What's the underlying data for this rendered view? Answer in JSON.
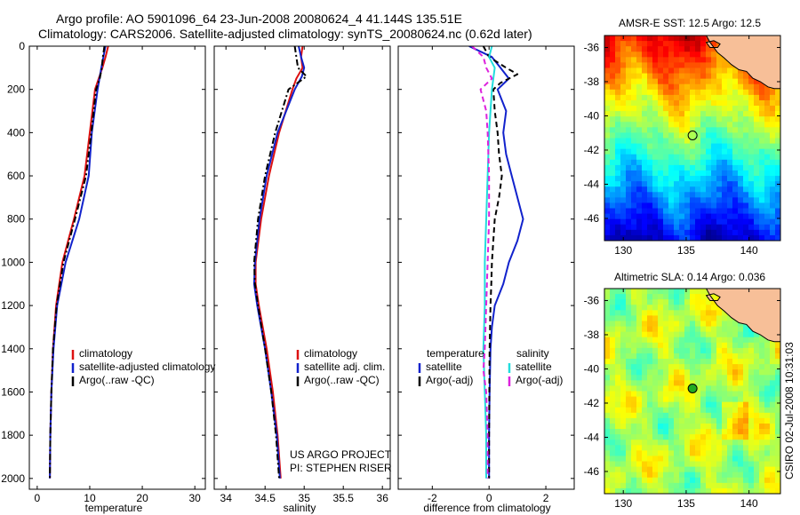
{
  "header": {
    "line1": "Argo profile: AO 5901096_64 23-Jun-2008 20080624_4 41.144S 135.51E",
    "line2": "Climatology: CARS2006. Satellite-adjusted climatology: synTS_20080624.nc (0.62d later)"
  },
  "side_label": "CSIRO 02-Jul-2008 10:31:03",
  "colors": {
    "climatology": "#dd1111",
    "satellite": "#1122cc",
    "argo": "#000000",
    "salinity_satellite": "#22dddd",
    "salinity_argo": "#dd22dd",
    "land": "#f7bf98"
  },
  "chart_data": [
    {
      "type": "line",
      "xlabel": "temperature",
      "ylim": [
        0,
        2050
      ],
      "y_reversed": true,
      "xlim": [
        -1.5,
        32
      ],
      "xticks": [
        0,
        10,
        20,
        30
      ],
      "yticks": [
        0,
        200,
        400,
        600,
        800,
        1000,
        1200,
        1400,
        1600,
        1800,
        2000
      ],
      "legend": [
        "climatology",
        "satellite-adjusted climatology",
        "Argo(..raw -QC)"
      ],
      "series": [
        {
          "name": "climatology",
          "style": "solid",
          "color": "#dd1111",
          "y": [
            0,
            50,
            100,
            200,
            400,
            600,
            800,
            1000,
            1200,
            1400,
            1600,
            1800,
            2000
          ],
          "x": [
            13.5,
            13.0,
            12.4,
            11.0,
            10.0,
            9.0,
            7.0,
            4.8,
            3.6,
            3.0,
            2.7,
            2.5,
            2.4
          ]
        },
        {
          "name": "satellite-adjusted climatology",
          "style": "solid",
          "color": "#1122cc",
          "y": [
            0,
            50,
            100,
            200,
            400,
            600,
            800,
            1000,
            1200,
            1400,
            1600,
            1800,
            2000
          ],
          "x": [
            13.0,
            12.6,
            12.2,
            11.5,
            10.4,
            9.8,
            8.0,
            5.4,
            3.8,
            3.1,
            2.7,
            2.5,
            2.4
          ]
        },
        {
          "name": "Argo(..raw -QC)",
          "style": "dashdot",
          "color": "#000000",
          "y": [
            0,
            50,
            100,
            150,
            200,
            400,
            600,
            800,
            1000,
            1200,
            1400,
            1600,
            1800,
            2000
          ],
          "x": [
            12.8,
            12.5,
            12.3,
            11.9,
            11.2,
            10.3,
            9.3,
            7.2,
            5.0,
            3.7,
            3.0,
            2.7,
            2.5,
            2.4
          ]
        }
      ]
    },
    {
      "type": "line",
      "xlabel": "salinity",
      "ylim": [
        0,
        2050
      ],
      "y_reversed": true,
      "xlim": [
        33.85,
        36.1
      ],
      "xticks": [
        34,
        34.5,
        35,
        35.5,
        36
      ],
      "legend": [
        "climatology",
        "satellite adj. clim.",
        "Argo(..raw -QC)"
      ],
      "annotation": [
        "US ARGO PROJECT",
        "PI: STEPHEN RISER"
      ],
      "series": [
        {
          "name": "climatology",
          "style": "solid",
          "color": "#dd1111",
          "y": [
            0,
            50,
            100,
            150,
            200,
            400,
            600,
            800,
            1000,
            1100,
            1200,
            1400,
            1600,
            1800,
            2000
          ],
          "x": [
            34.98,
            34.96,
            34.98,
            34.9,
            34.85,
            34.68,
            34.55,
            34.45,
            34.38,
            34.38,
            34.42,
            34.52,
            34.6,
            34.66,
            34.7
          ]
        },
        {
          "name": "satellite adj. clim.",
          "style": "solid",
          "color": "#1122cc",
          "y": [
            0,
            50,
            100,
            140,
            200,
            400,
            600,
            800,
            1000,
            1100,
            1200,
            1400,
            1600,
            1800,
            2000
          ],
          "x": [
            34.93,
            34.96,
            35.0,
            34.97,
            34.88,
            34.66,
            34.52,
            34.43,
            34.37,
            34.36,
            34.4,
            34.5,
            34.58,
            34.65,
            34.69
          ]
        },
        {
          "name": "Argo(..raw -QC)",
          "style": "dashdot",
          "color": "#000000",
          "y": [
            0,
            50,
            100,
            140,
            200,
            400,
            600,
            800,
            1000,
            1100,
            1200,
            1400,
            1600,
            1800,
            2000
          ],
          "x": [
            34.88,
            34.9,
            34.92,
            35.03,
            34.8,
            34.63,
            34.5,
            34.41,
            34.36,
            34.37,
            34.41,
            34.5,
            34.58,
            34.64,
            34.68
          ]
        }
      ]
    },
    {
      "type": "line",
      "xlabel": "difference from climatology",
      "ylim": [
        0,
        2050
      ],
      "y_reversed": true,
      "xlim": [
        -3.2,
        3.0
      ],
      "xticks": [
        -2,
        0,
        2
      ],
      "legend_groups": [
        {
          "heading": "temperature",
          "entries": [
            "satellite",
            "Argo(-adj)"
          ]
        },
        {
          "heading": "salinity",
          "entries": [
            "satellite",
            "Argo(-adj)"
          ]
        }
      ],
      "series": [
        {
          "name": "satellite",
          "group": "temperature",
          "style": "solid",
          "color": "#1122cc",
          "y": [
            0,
            50,
            100,
            150,
            200,
            300,
            400,
            500,
            600,
            700,
            800,
            900,
            1000,
            1100,
            1200,
            1300,
            1400,
            1600,
            1800,
            2000
          ],
          "x": [
            -0.7,
            0.1,
            0.4,
            0.7,
            0.3,
            0.6,
            0.5,
            0.6,
            0.8,
            1.0,
            1.2,
            1.0,
            0.7,
            0.5,
            0.2,
            0.1,
            0.05,
            0.02,
            0.0,
            0.0
          ]
        },
        {
          "name": "Argo(-adj)",
          "group": "temperature",
          "style": "dashed",
          "color": "#000000",
          "y": [
            0,
            50,
            100,
            130,
            170,
            200,
            300,
            400,
            500,
            600,
            700,
            800,
            900,
            1000,
            1100,
            1200,
            1400,
            1600,
            1800,
            2000
          ],
          "x": [
            -0.2,
            0.0,
            0.6,
            1.0,
            0.4,
            0.15,
            0.2,
            0.3,
            0.35,
            0.45,
            0.35,
            0.2,
            0.15,
            0.1,
            0.08,
            0.05,
            0.02,
            0.01,
            0.0,
            0.0
          ]
        },
        {
          "name": "satellite",
          "group": "salinity",
          "style": "solid",
          "color": "#22dddd",
          "y": [
            0,
            50,
            100,
            150,
            200,
            300,
            400,
            600,
            800,
            1000,
            1200,
            1400,
            1600,
            1800,
            2000
          ],
          "x": [
            0.1,
            0.0,
            0.2,
            0.15,
            0.1,
            0.05,
            0.0,
            -0.05,
            -0.1,
            -0.15,
            -0.15,
            -0.2,
            -0.15,
            -0.1,
            -0.1
          ]
        },
        {
          "name": "Argo(-adj)",
          "group": "salinity",
          "style": "dashed",
          "color": "#dd22dd",
          "y": [
            0,
            50,
            100,
            150,
            200,
            300,
            400,
            600,
            800,
            1000,
            1200,
            1400,
            1500,
            1600,
            1800,
            2000
          ],
          "x": [
            -0.6,
            -0.2,
            -0.1,
            0.1,
            -0.3,
            -0.1,
            -0.05,
            0.0,
            0.0,
            -0.05,
            -0.1,
            -0.15,
            -0.2,
            -0.1,
            -0.05,
            -0.05
          ]
        }
      ]
    },
    {
      "type": "heatmap",
      "title": "AMSR-E SST: 12.5 Argo: 12.5",
      "xlim": [
        128.5,
        142.5
      ],
      "ylim": [
        -47.3,
        -35.3
      ],
      "xticks": [
        130,
        135,
        140
      ],
      "yticks": [
        -36,
        -38,
        -40,
        -42,
        -44,
        -46
      ],
      "marker": {
        "lon": 135.51,
        "lat": -41.144,
        "filled": false
      }
    },
    {
      "type": "heatmap",
      "title": "Altimetric SLA: 0.14 Argo: 0.036",
      "xlim": [
        128.5,
        142.5
      ],
      "ylim": [
        -47.3,
        -35.3
      ],
      "xticks": [
        130,
        135,
        140
      ],
      "yticks": [
        -36,
        -38,
        -40,
        -42,
        -44,
        -46
      ],
      "marker": {
        "lon": 135.51,
        "lat": -41.144,
        "filled": true
      }
    }
  ]
}
